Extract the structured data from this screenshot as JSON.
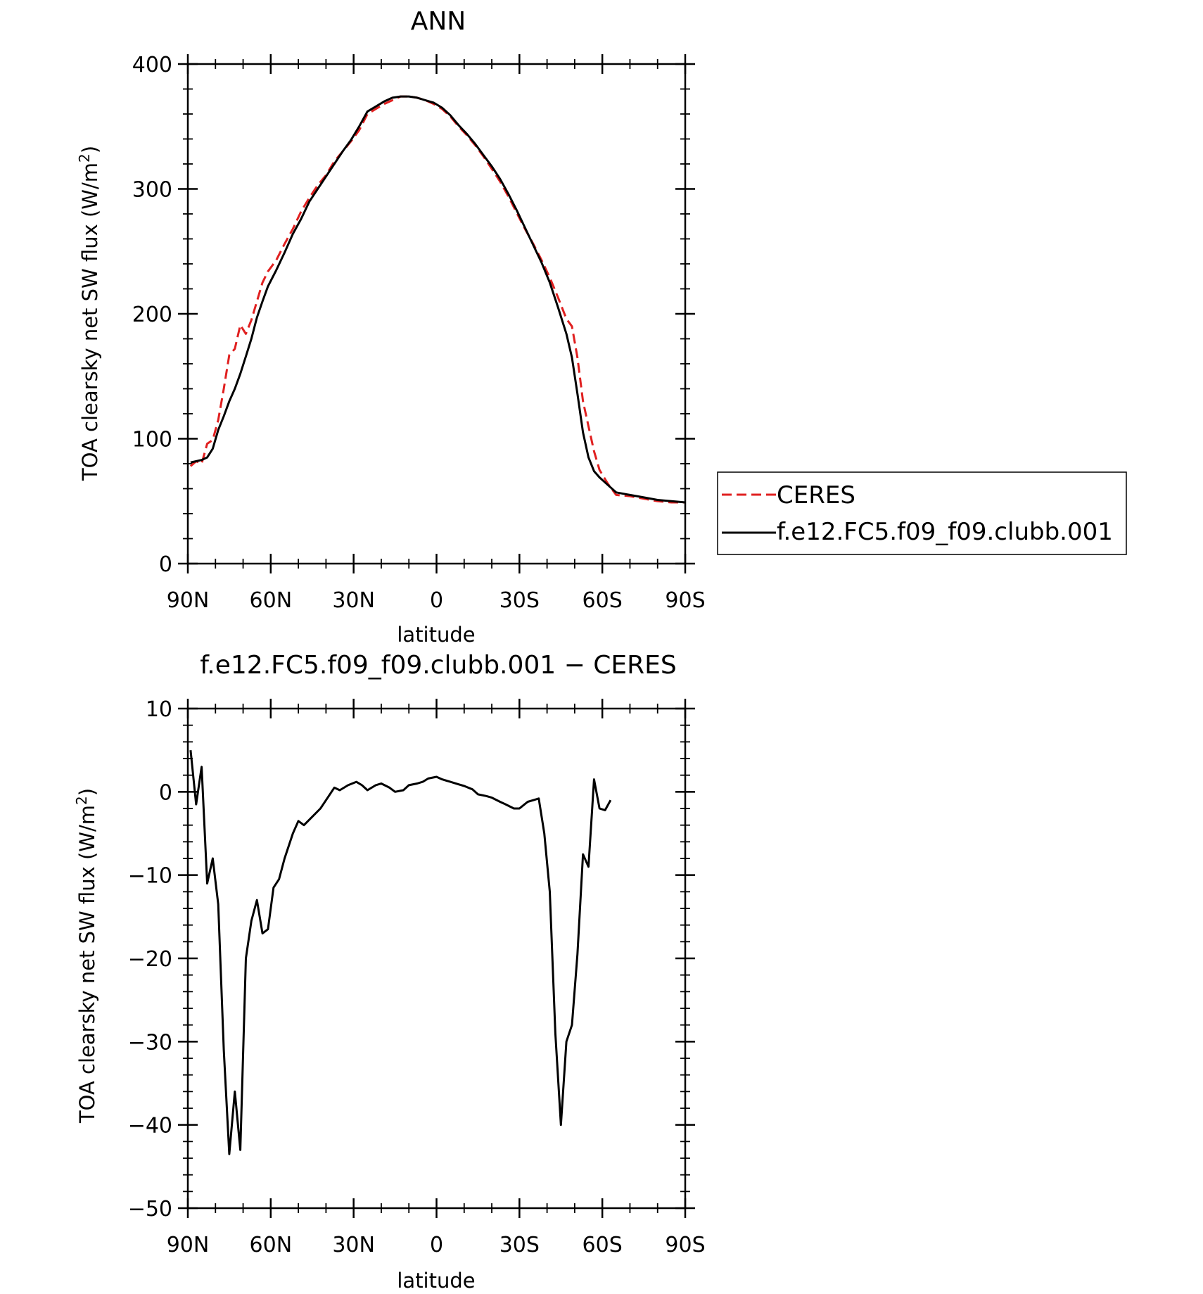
{
  "chart_data": [
    {
      "type": "line",
      "title": "ANN",
      "xlabel": "latitude",
      "ylabel": "TOA clearsky net SW flux (W/m²)",
      "ylabel_main": "TOA clearsky net SW flux (W/m",
      "ylabel_sup": "2",
      "ylabel_end": ")",
      "xlim": [
        90,
        -90
      ],
      "ylim": [
        0,
        400
      ],
      "x_ticks": [
        90,
        60,
        30,
        0,
        -30,
        -60,
        -90
      ],
      "x_tick_labels": [
        "90N",
        "60N",
        "30N",
        "0",
        "30S",
        "60S",
        "90S"
      ],
      "y_ticks": [
        0,
        100,
        200,
        300,
        400
      ],
      "y_tick_labels": [
        "0",
        "100",
        "200",
        "300",
        "400"
      ],
      "legend_position": "right",
      "series": [
        {
          "name": "CERES",
          "color": "#e02020",
          "dash": "dashed",
          "points": [
            [
              89,
              78
            ],
            [
              87,
              82
            ],
            [
              85,
              80
            ],
            [
              83,
              96
            ],
            [
              81,
              99
            ],
            [
              79,
              115
            ],
            [
              77,
              140
            ],
            [
              75,
              167
            ],
            [
              73,
              172
            ],
            [
              71,
              191
            ],
            [
              69,
              184
            ],
            [
              67,
              195
            ],
            [
              65,
              210
            ],
            [
              63,
              225
            ],
            [
              61,
              234
            ],
            [
              58,
              243
            ],
            [
              55,
              256
            ],
            [
              52,
              268
            ],
            [
              49,
              282
            ],
            [
              46,
              293
            ],
            [
              43,
              303
            ],
            [
              40,
              311
            ],
            [
              37,
              322
            ],
            [
              34,
              330
            ],
            [
              31,
              338
            ],
            [
              28,
              347
            ],
            [
              25,
              360
            ],
            [
              22,
              364
            ],
            [
              19,
              368
            ],
            [
              16,
              371
            ],
            [
              13,
              374
            ],
            [
              10,
              374
            ],
            [
              7,
              373
            ],
            [
              4,
              371
            ],
            [
              1,
              368
            ],
            [
              -2,
              364
            ],
            [
              -5,
              358
            ],
            [
              -8,
              350
            ],
            [
              -11,
              343
            ],
            [
              -14,
              335
            ],
            [
              -17,
              326
            ],
            [
              -20,
              316
            ],
            [
              -23,
              306
            ],
            [
              -26,
              294
            ],
            [
              -29,
              281
            ],
            [
              -32,
              268
            ],
            [
              -35,
              256
            ],
            [
              -38,
              243
            ],
            [
              -41,
              229
            ],
            [
              -44,
              213
            ],
            [
              -47,
              196
            ],
            [
              -49,
              190
            ],
            [
              -51,
              165
            ],
            [
              -53,
              130
            ],
            [
              -55,
              110
            ],
            [
              -57,
              90
            ],
            [
              -59,
              75
            ],
            [
              -62,
              64
            ],
            [
              -65,
              55
            ],
            [
              -70,
              54
            ],
            [
              -75,
              52
            ],
            [
              -80,
              50
            ],
            [
              -85,
              49
            ],
            [
              -90,
              49
            ]
          ]
        },
        {
          "name": "f.e12.FC5.f09_f09.clubb.001",
          "color": "#000000",
          "dash": "solid",
          "points": [
            [
              89,
              81
            ],
            [
              87,
              82
            ],
            [
              85,
              83
            ],
            [
              83,
              85
            ],
            [
              81,
              92
            ],
            [
              79,
              107
            ],
            [
              77,
              118
            ],
            [
              75,
              130
            ],
            [
              73,
              140
            ],
            [
              71,
              152
            ],
            [
              69,
              166
            ],
            [
              67,
              180
            ],
            [
              65,
              197
            ],
            [
              63,
              210
            ],
            [
              61,
              222
            ],
            [
              58,
              235
            ],
            [
              55,
              249
            ],
            [
              52,
              264
            ],
            [
              49,
              276
            ],
            [
              46,
              290
            ],
            [
              43,
              300
            ],
            [
              40,
              310
            ],
            [
              37,
              320
            ],
            [
              34,
              330
            ],
            [
              31,
              339
            ],
            [
              28,
              350
            ],
            [
              25,
              362
            ],
            [
              22,
              366
            ],
            [
              19,
              370
            ],
            [
              16,
              373
            ],
            [
              13,
              374
            ],
            [
              10,
              374
            ],
            [
              7,
              373
            ],
            [
              4,
              371
            ],
            [
              1,
              369
            ],
            [
              -2,
              365
            ],
            [
              -5,
              359
            ],
            [
              -8,
              351
            ],
            [
              -11,
              344
            ],
            [
              -14,
              336
            ],
            [
              -17,
              327
            ],
            [
              -20,
              318
            ],
            [
              -23,
              308
            ],
            [
              -26,
              296
            ],
            [
              -29,
              283
            ],
            [
              -32,
              269
            ],
            [
              -35,
              255
            ],
            [
              -38,
              241
            ],
            [
              -41,
              225
            ],
            [
              -44,
              205
            ],
            [
              -47,
              184
            ],
            [
              -49,
              165
            ],
            [
              -51,
              136
            ],
            [
              -53,
              105
            ],
            [
              -55,
              85
            ],
            [
              -57,
              74
            ],
            [
              -59,
              69
            ],
            [
              -62,
              63
            ],
            [
              -65,
              57
            ],
            [
              -70,
              55
            ],
            [
              -75,
              53
            ],
            [
              -80,
              51
            ],
            [
              -85,
              50
            ],
            [
              -90,
              49
            ]
          ]
        }
      ]
    },
    {
      "type": "line",
      "title": "f.e12.FC5.f09_f09.clubb.001 − CERES",
      "xlabel": "latitude",
      "ylabel": "TOA clearsky net SW flux (W/m²)",
      "ylabel_main": "TOA clearsky net SW flux (W/m",
      "ylabel_sup": "2",
      "ylabel_end": ")",
      "xlim": [
        90,
        -90
      ],
      "ylim": [
        -50,
        10
      ],
      "x_ticks": [
        90,
        60,
        30,
        0,
        -30,
        -60,
        -90
      ],
      "x_tick_labels": [
        "90N",
        "60N",
        "30N",
        "0",
        "30S",
        "60S",
        "90S"
      ],
      "y_ticks": [
        -50,
        -40,
        -30,
        -20,
        -10,
        0,
        10
      ],
      "y_tick_labels": [
        "−50",
        "−40",
        "−30",
        "−20",
        "−10",
        "0",
        "10"
      ],
      "series": [
        {
          "name": "",
          "color": "#000000",
          "dash": "solid",
          "points": [
            [
              89,
              5
            ],
            [
              87,
              -1.5
            ],
            [
              85,
              3
            ],
            [
              83,
              -11
            ],
            [
              81,
              -8
            ],
            [
              79,
              -13.5
            ],
            [
              77,
              -31
            ],
            [
              75,
              -43.5
            ],
            [
              73,
              -36
            ],
            [
              71,
              -43
            ],
            [
              69,
              -20
            ],
            [
              67,
              -15.5
            ],
            [
              65,
              -13
            ],
            [
              63,
              -17
            ],
            [
              61,
              -16.5
            ],
            [
              59,
              -11.5
            ],
            [
              57,
              -10.5
            ],
            [
              55,
              -8
            ],
            [
              52,
              -5
            ],
            [
              50,
              -3.5
            ],
            [
              48,
              -4
            ],
            [
              45,
              -3
            ],
            [
              42,
              -2
            ],
            [
              40,
              -1
            ],
            [
              37,
              0.5
            ],
            [
              35,
              0.2
            ],
            [
              32,
              0.8
            ],
            [
              29,
              1.2
            ],
            [
              27,
              0.8
            ],
            [
              25,
              0.2
            ],
            [
              22,
              0.8
            ],
            [
              20,
              1
            ],
            [
              17,
              0.5
            ],
            [
              15,
              0
            ],
            [
              12,
              0.2
            ],
            [
              10,
              0.8
            ],
            [
              7,
              1
            ],
            [
              5,
              1.2
            ],
            [
              3,
              1.6
            ],
            [
              0,
              1.8
            ],
            [
              -2,
              1.5
            ],
            [
              -5,
              1.2
            ],
            [
              -8,
              0.9
            ],
            [
              -10,
              0.7
            ],
            [
              -13,
              0.3
            ],
            [
              -15,
              -0.3
            ],
            [
              -18,
              -0.5
            ],
            [
              -20,
              -0.7
            ],
            [
              -23,
              -1.2
            ],
            [
              -25,
              -1.5
            ],
            [
              -28,
              -2
            ],
            [
              -30,
              -2
            ],
            [
              -33,
              -1.2
            ],
            [
              -35,
              -1
            ],
            [
              -37,
              -0.8
            ],
            [
              -39,
              -5
            ],
            [
              -41,
              -12
            ],
            [
              -43,
              -29
            ],
            [
              -45,
              -40
            ],
            [
              -47,
              -30
            ],
            [
              -49,
              -28
            ],
            [
              -51,
              -19.5
            ],
            [
              -53,
              -7.5
            ],
            [
              -55,
              -9
            ],
            [
              -57,
              1.5
            ],
            [
              -59,
              -2
            ],
            [
              -61,
              -2.2
            ],
            [
              -63,
              -1
            ]
          ]
        }
      ]
    }
  ]
}
